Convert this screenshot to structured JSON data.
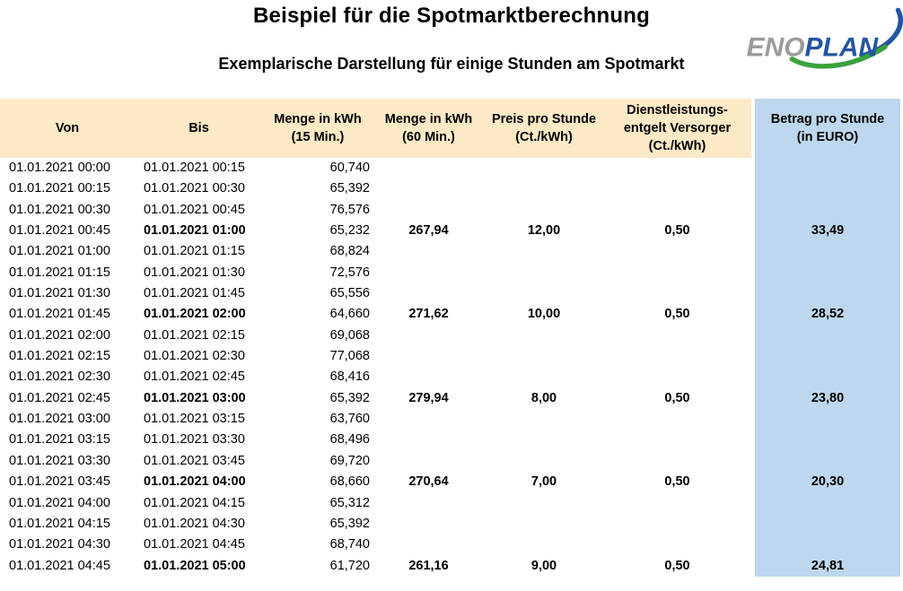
{
  "page": {
    "title": "Beispiel für die Spotmarktberechnung",
    "subtitle": "Exemplarische Darstellung für einige Stunden am Spotmarkt"
  },
  "logo": {
    "gray_part": "ENO",
    "blue_part": "PLAN"
  },
  "colors": {
    "header_cream": "#FCE9C5",
    "column_blue": "#BDD7EE",
    "logo_gray": "#9B9B9B",
    "logo_blue": "#2355A0",
    "logo_green": "#3AA23C"
  },
  "table": {
    "headers": [
      {
        "id": "von",
        "lines": [
          "Von"
        ]
      },
      {
        "id": "bis",
        "lines": [
          "Bis"
        ]
      },
      {
        "id": "menge15",
        "lines": [
          "Menge in kWh",
          "(15 Min.)"
        ]
      },
      {
        "id": "menge60",
        "lines": [
          "Menge in kWh",
          "(60 Min.)"
        ]
      },
      {
        "id": "preis",
        "lines": [
          "Preis pro Stunde",
          "(Ct./kWh)"
        ]
      },
      {
        "id": "dienst",
        "lines": [
          "Dienstleistungs-",
          "entgelt Versorger",
          "(Ct./kWh)"
        ]
      },
      {
        "id": "betrag",
        "lines": [
          "Betrag pro Stunde",
          "(in EURO)"
        ]
      }
    ],
    "rows": [
      {
        "von": "01.01.2021 00:00",
        "bis": "01.01.2021 00:15",
        "hour": false,
        "m15": "60,740",
        "m60": "",
        "preis": "",
        "dienst": "",
        "betrag": ""
      },
      {
        "von": "01.01.2021 00:15",
        "bis": "01.01.2021 00:30",
        "hour": false,
        "m15": "65,392",
        "m60": "",
        "preis": "",
        "dienst": "",
        "betrag": ""
      },
      {
        "von": "01.01.2021 00:30",
        "bis": "01.01.2021 00:45",
        "hour": false,
        "m15": "76,576",
        "m60": "",
        "preis": "",
        "dienst": "",
        "betrag": ""
      },
      {
        "von": "01.01.2021 00:45",
        "bis": "01.01.2021 01:00",
        "hour": true,
        "m15": "65,232",
        "m60": "267,94",
        "preis": "12,00",
        "dienst": "0,50",
        "betrag": "33,49"
      },
      {
        "von": "01.01.2021 01:00",
        "bis": "01.01.2021 01:15",
        "hour": false,
        "m15": "68,824",
        "m60": "",
        "preis": "",
        "dienst": "",
        "betrag": ""
      },
      {
        "von": "01.01.2021 01:15",
        "bis": "01.01.2021 01:30",
        "hour": false,
        "m15": "72,576",
        "m60": "",
        "preis": "",
        "dienst": "",
        "betrag": ""
      },
      {
        "von": "01.01.2021 01:30",
        "bis": "01.01.2021 01:45",
        "hour": false,
        "m15": "65,556",
        "m60": "",
        "preis": "",
        "dienst": "",
        "betrag": ""
      },
      {
        "von": "01.01.2021 01:45",
        "bis": "01.01.2021 02:00",
        "hour": true,
        "m15": "64,660",
        "m60": "271,62",
        "preis": "10,00",
        "dienst": "0,50",
        "betrag": "28,52"
      },
      {
        "von": "01.01.2021 02:00",
        "bis": "01.01.2021 02:15",
        "hour": false,
        "m15": "69,068",
        "m60": "",
        "preis": "",
        "dienst": "",
        "betrag": ""
      },
      {
        "von": "01.01.2021 02:15",
        "bis": "01.01.2021 02:30",
        "hour": false,
        "m15": "77,068",
        "m60": "",
        "preis": "",
        "dienst": "",
        "betrag": ""
      },
      {
        "von": "01.01.2021 02:30",
        "bis": "01.01.2021 02:45",
        "hour": false,
        "m15": "68,416",
        "m60": "",
        "preis": "",
        "dienst": "",
        "betrag": ""
      },
      {
        "von": "01.01.2021 02:45",
        "bis": "01.01.2021 03:00",
        "hour": true,
        "m15": "65,392",
        "m60": "279,94",
        "preis": "8,00",
        "dienst": "0,50",
        "betrag": "23,80"
      },
      {
        "von": "01.01.2021 03:00",
        "bis": "01.01.2021 03:15",
        "hour": false,
        "m15": "63,760",
        "m60": "",
        "preis": "",
        "dienst": "",
        "betrag": ""
      },
      {
        "von": "01.01.2021 03:15",
        "bis": "01.01.2021 03:30",
        "hour": false,
        "m15": "68,496",
        "m60": "",
        "preis": "",
        "dienst": "",
        "betrag": ""
      },
      {
        "von": "01.01.2021 03:30",
        "bis": "01.01.2021 03:45",
        "hour": false,
        "m15": "69,720",
        "m60": "",
        "preis": "",
        "dienst": "",
        "betrag": ""
      },
      {
        "von": "01.01.2021 03:45",
        "bis": "01.01.2021 04:00",
        "hour": true,
        "m15": "68,660",
        "m60": "270,64",
        "preis": "7,00",
        "dienst": "0,50",
        "betrag": "20,30"
      },
      {
        "von": "01.01.2021 04:00",
        "bis": "01.01.2021 04:15",
        "hour": false,
        "m15": "65,312",
        "m60": "",
        "preis": "",
        "dienst": "",
        "betrag": ""
      },
      {
        "von": "01.01.2021 04:15",
        "bis": "01.01.2021 04:30",
        "hour": false,
        "m15": "65,392",
        "m60": "",
        "preis": "",
        "dienst": "",
        "betrag": ""
      },
      {
        "von": "01.01.2021 04:30",
        "bis": "01.01.2021 04:45",
        "hour": false,
        "m15": "68,740",
        "m60": "",
        "preis": "",
        "dienst": "",
        "betrag": ""
      },
      {
        "von": "01.01.2021 04:45",
        "bis": "01.01.2021 05:00",
        "hour": true,
        "m15": "61,720",
        "m60": "261,16",
        "preis": "9,00",
        "dienst": "0,50",
        "betrag": "24,81"
      }
    ]
  }
}
